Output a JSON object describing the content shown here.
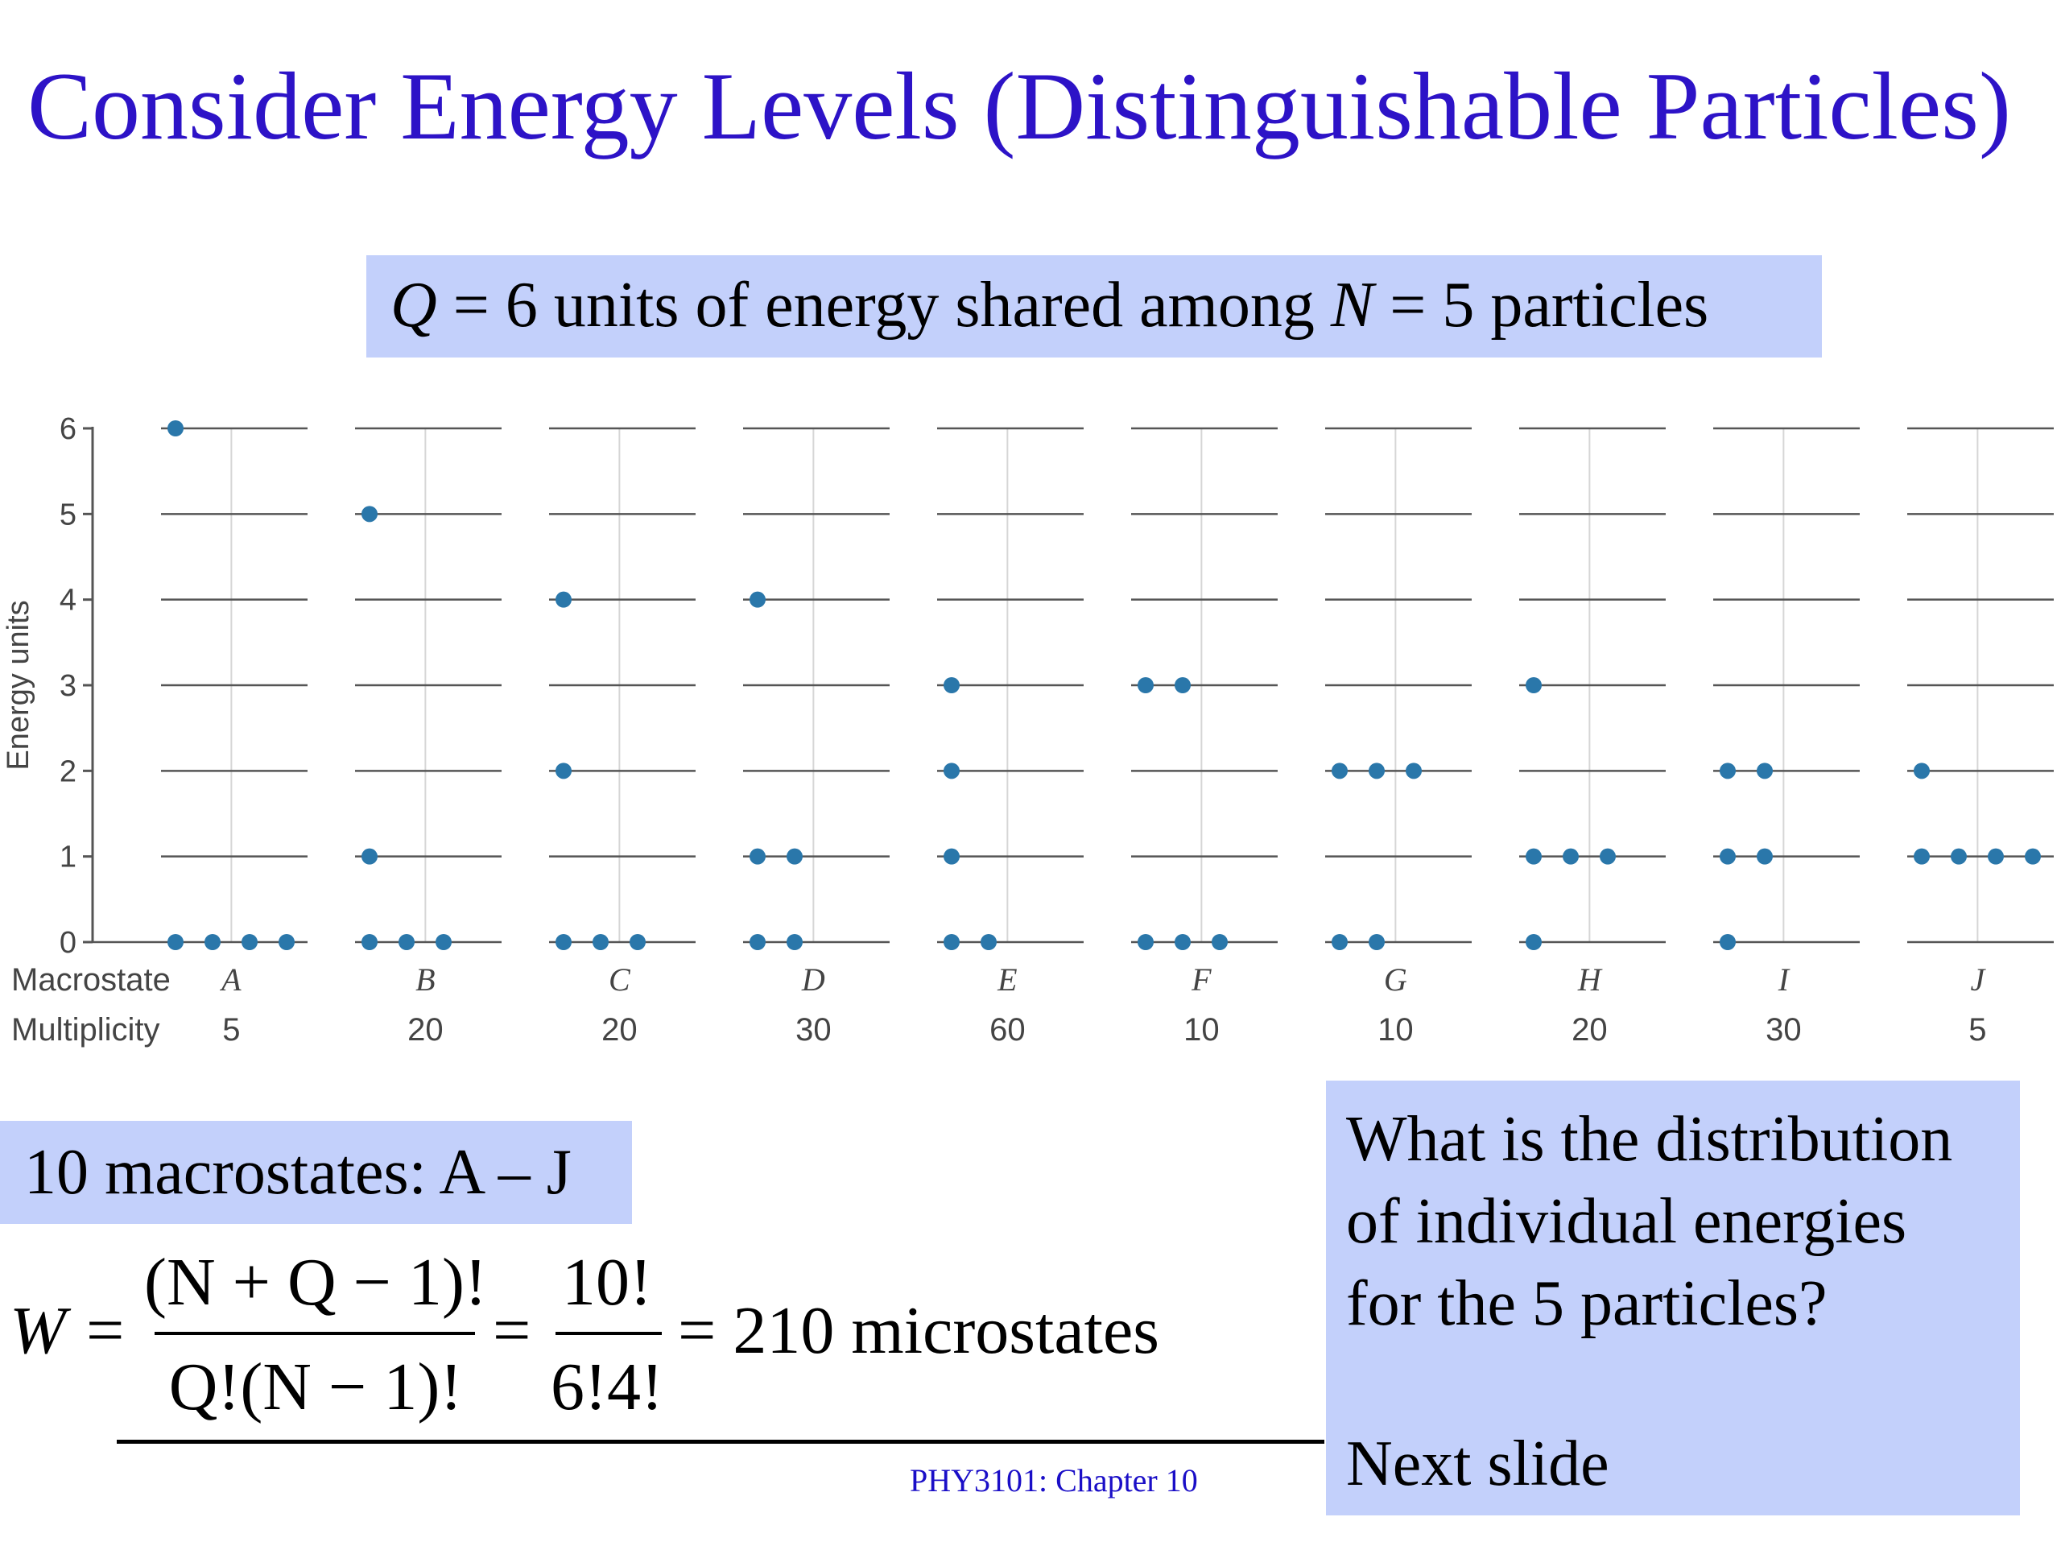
{
  "title": "Consider Energy Levels (Distinguishable Particles)",
  "subtitle": {
    "q": "Q",
    "part1": " = 6 units of energy shared among ",
    "n": "N",
    "part2": " = 5 particles"
  },
  "chart_data": {
    "type": "scatter",
    "ylabel": "Energy units",
    "ylim": [
      0,
      6
    ],
    "yticks": [
      "0",
      "1",
      "2",
      "3",
      "4",
      "5",
      "6"
    ],
    "row_labels": {
      "macrostate": "Macrostate",
      "multiplicity": "Multiplicity"
    },
    "macrostates": [
      {
        "name": "A",
        "multiplicity": "5",
        "levels": [
          [
            0,
            4
          ],
          [
            6,
            1
          ]
        ]
      },
      {
        "name": "B",
        "multiplicity": "20",
        "levels": [
          [
            0,
            3
          ],
          [
            1,
            1
          ],
          [
            5,
            1
          ]
        ]
      },
      {
        "name": "C",
        "multiplicity": "20",
        "levels": [
          [
            0,
            3
          ],
          [
            2,
            1
          ],
          [
            4,
            1
          ]
        ]
      },
      {
        "name": "D",
        "multiplicity": "30",
        "levels": [
          [
            0,
            2
          ],
          [
            1,
            2
          ],
          [
            4,
            1
          ]
        ]
      },
      {
        "name": "E",
        "multiplicity": "60",
        "levels": [
          [
            0,
            2
          ],
          [
            1,
            1
          ],
          [
            2,
            1
          ],
          [
            3,
            1
          ]
        ]
      },
      {
        "name": "F",
        "multiplicity": "10",
        "levels": [
          [
            0,
            3
          ],
          [
            3,
            2
          ]
        ]
      },
      {
        "name": "G",
        "multiplicity": "10",
        "levels": [
          [
            0,
            2
          ],
          [
            2,
            3
          ]
        ]
      },
      {
        "name": "H",
        "multiplicity": "20",
        "levels": [
          [
            0,
            1
          ],
          [
            1,
            3
          ],
          [
            3,
            1
          ]
        ]
      },
      {
        "name": "I",
        "multiplicity": "30",
        "levels": [
          [
            0,
            1
          ],
          [
            1,
            2
          ],
          [
            2,
            2
          ]
        ]
      },
      {
        "name": "J",
        "multiplicity": "5",
        "levels": [
          [
            1,
            4
          ],
          [
            2,
            1
          ]
        ]
      }
    ],
    "dot_color": "#2a77aa"
  },
  "macrostates_box": "10 macrostates: A – J",
  "formula": {
    "lhs": "W",
    "eq": "=",
    "num1": "(N + Q − 1)!",
    "den1": "Q!(N − 1)!",
    "num2": "10!",
    "den2": "6!4!",
    "result": "= 210 microstates"
  },
  "footer": "PHY3101: Chapter 10",
  "question": "What is the distribution\nof individual energies\nfor the 5 particles?",
  "next_slide": "Next slide",
  "colors": {
    "title": "#2d13c7",
    "box": "#c3d0fb",
    "dots": "#2a77aa"
  }
}
